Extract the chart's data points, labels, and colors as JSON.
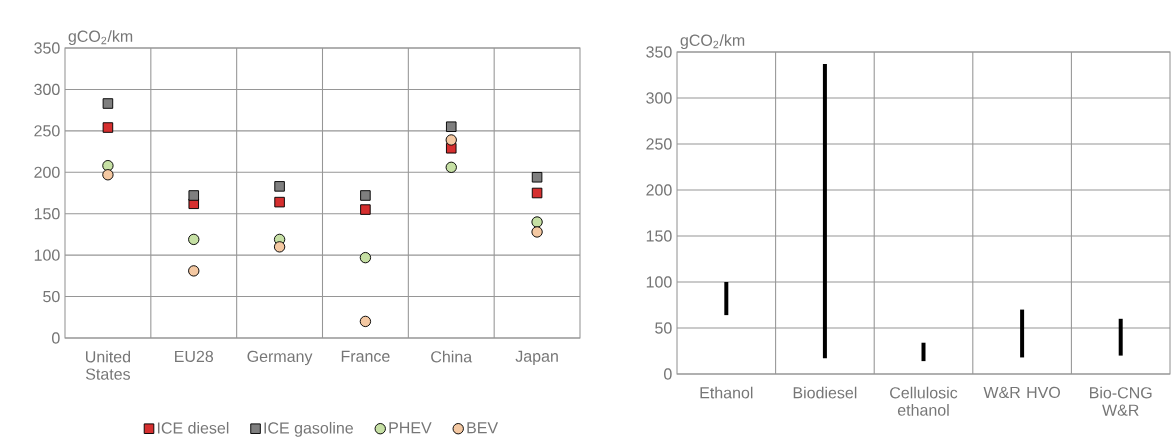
{
  "chart_data": [
    {
      "type": "scatter",
      "ylabel": "gCO$_{2}$/km",
      "categories": [
        "United States",
        "EU28",
        "Germany",
        "France",
        "China",
        "Japan"
      ],
      "ylim": [
        0,
        350
      ],
      "yticks": [
        0,
        50,
        100,
        150,
        200,
        250,
        300,
        350
      ],
      "grid": true,
      "legend": "bottom",
      "series": [
        {
          "name": "ICE diesel",
          "color": "#d62f2f",
          "marker": "square",
          "values": [
            254,
            162,
            164,
            155,
            229,
            175
          ]
        },
        {
          "name": "ICE gasoline",
          "color": "#7f7f7f",
          "marker": "square",
          "values": [
            283,
            172,
            183,
            172,
            255,
            194
          ]
        },
        {
          "name": "PHEV",
          "color": "#c6e0a4",
          "marker": "circle",
          "values": [
            208,
            119,
            119,
            97,
            206,
            140
          ]
        },
        {
          "name": "BEV",
          "color": "#f4c8a2",
          "marker": "circle",
          "values": [
            197,
            81,
            110,
            20,
            239,
            128
          ]
        }
      ]
    },
    {
      "type": "bar",
      "ylabel": "gCO$_{2}$/km",
      "categories": [
        "Ethanol",
        "Biodiesel",
        "Cellulosic ethanol",
        "W&R HVO",
        "Bio-CNG W&R"
      ],
      "ylim": [
        0,
        350
      ],
      "yticks": [
        0,
        50,
        100,
        150,
        200,
        250,
        300,
        350
      ],
      "grid": true,
      "color": "#000000",
      "base": [
        64,
        17,
        14,
        18,
        20
      ],
      "values": [
        36,
        320,
        20,
        52,
        40
      ]
    }
  ]
}
